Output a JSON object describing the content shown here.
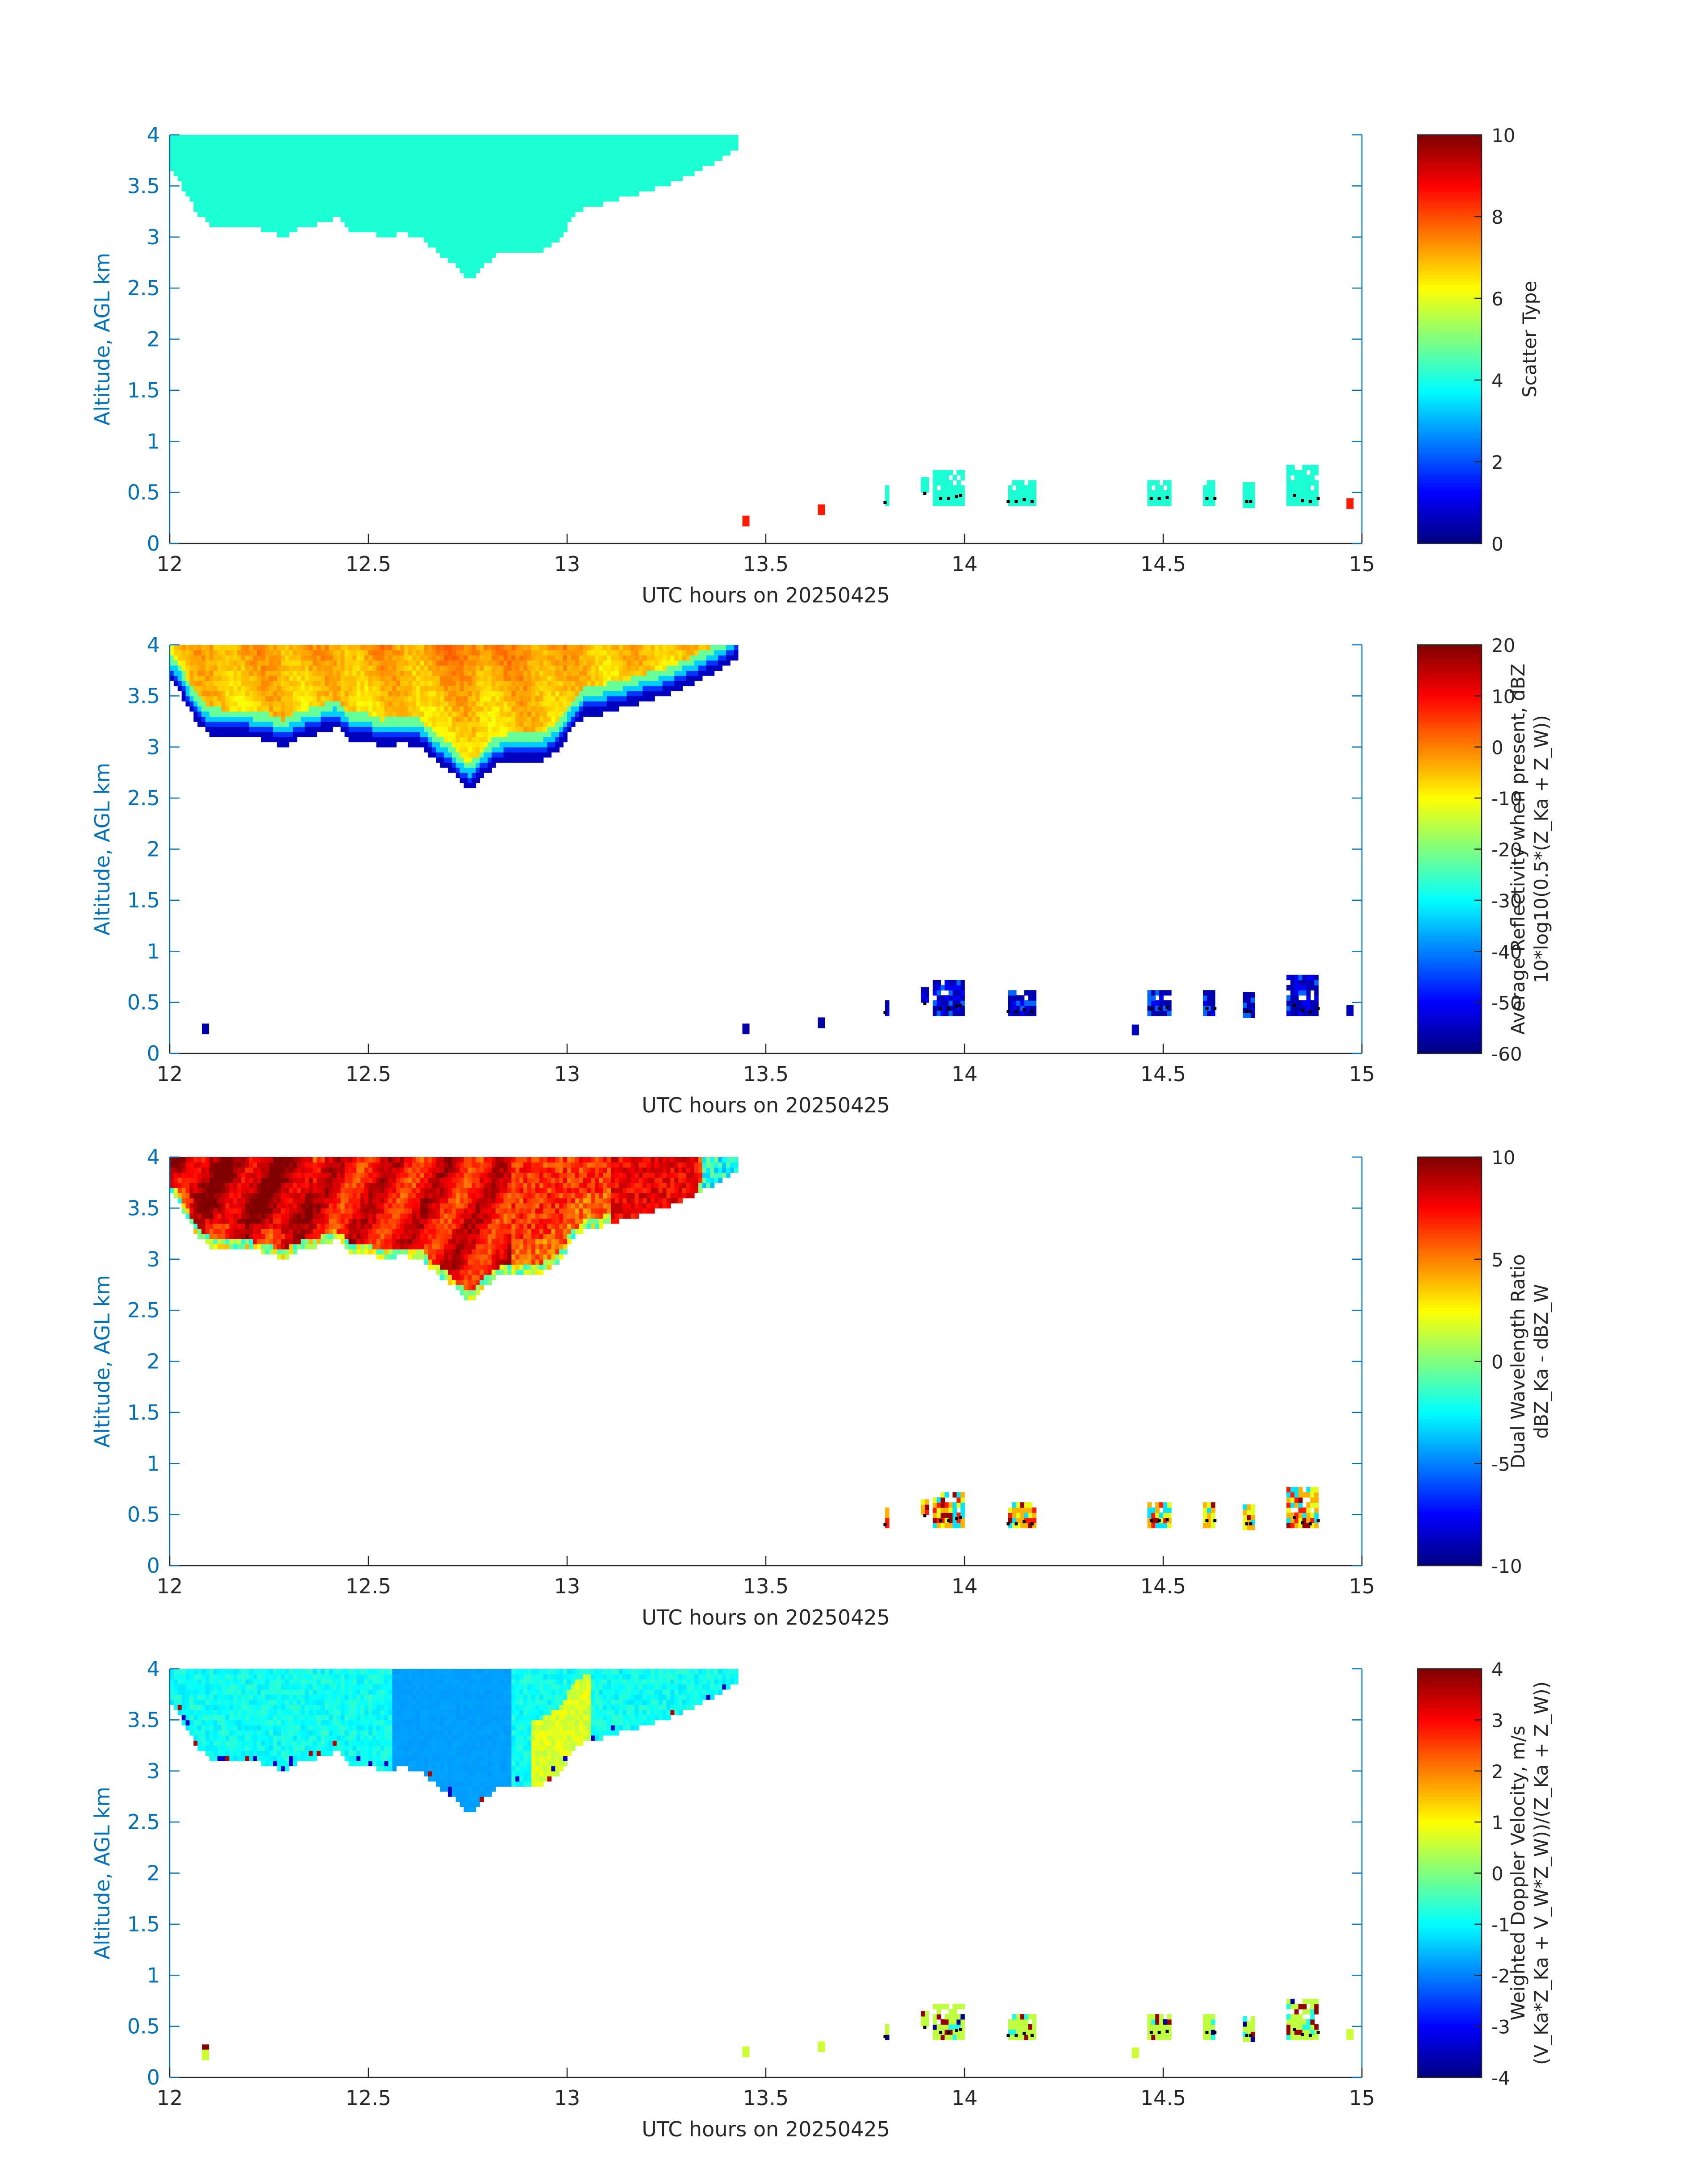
{
  "figure": {
    "time_axis_label": "UTC hours on 20250425",
    "altitude_axis_label": "Altitude, AGL km"
  },
  "colors": {
    "axis_blue": "#0072BD",
    "text_dark": "#262626",
    "cloud_cyan": "#1CFFD4",
    "surface_orange": "#FF4400"
  },
  "chart_data": [
    {
      "type": "heatmap",
      "id": "scatter_type",
      "title": "",
      "xlabel": "UTC hours on 20250425",
      "ylabel": "Altitude, AGL km",
      "xlim": [
        12,
        15
      ],
      "ylim": [
        0,
        4
      ],
      "x_ticks": [
        12,
        12.5,
        13,
        13.5,
        14,
        14.5,
        15
      ],
      "y_ticks": [
        0,
        0.5,
        1,
        1.5,
        2,
        2.5,
        3,
        3.5,
        4
      ],
      "colorbar": {
        "label": [
          "Scatter Type"
        ],
        "range": [
          0,
          10
        ],
        "ticks": [
          0,
          2,
          4,
          6,
          8,
          10
        ]
      },
      "field": "type",
      "surface_points": [
        {
          "x": 13.45,
          "y": 0.22,
          "v": 8.5
        },
        {
          "x": 13.64,
          "y": 0.33,
          "v": 8.5
        },
        {
          "x": 14.97,
          "y": 0.39,
          "v": 8.5
        }
      ]
    },
    {
      "type": "heatmap",
      "id": "avg_reflectivity",
      "title": "",
      "xlabel": "UTC hours on 20250425",
      "ylabel": "Altitude, AGL km",
      "xlim": [
        12,
        15
      ],
      "ylim": [
        0,
        4
      ],
      "x_ticks": [
        12,
        12.5,
        13,
        13.5,
        14,
        14.5,
        15
      ],
      "y_ticks": [
        0,
        0.5,
        1,
        1.5,
        2,
        2.5,
        3,
        3.5,
        4
      ],
      "colorbar": {
        "label": [
          "Average Reflectivity when present, dBZ",
          "10*log10(0.5*(Z_Ka + Z_W))"
        ],
        "range": [
          -60,
          20
        ],
        "ticks": [
          -60,
          -50,
          -40,
          -30,
          -20,
          -10,
          0,
          10,
          20
        ]
      },
      "field": "refl",
      "surface_points": [
        {
          "x": 12.09,
          "y": 0.24,
          "v": -57
        },
        {
          "x": 13.45,
          "y": 0.24,
          "v": -57
        },
        {
          "x": 13.64,
          "y": 0.3,
          "v": -57
        },
        {
          "x": 14.43,
          "y": 0.23,
          "v": -55
        },
        {
          "x": 14.97,
          "y": 0.42,
          "v": -55
        }
      ]
    },
    {
      "type": "heatmap",
      "id": "dual_wavelength_ratio",
      "title": "",
      "xlabel": "UTC hours on 20250425",
      "ylabel": "Altitude, AGL km",
      "xlim": [
        12,
        15
      ],
      "ylim": [
        0,
        4
      ],
      "x_ticks": [
        12,
        12.5,
        13,
        13.5,
        14,
        14.5,
        15
      ],
      "y_ticks": [
        0,
        0.5,
        1,
        1.5,
        2,
        2.5,
        3,
        3.5,
        4
      ],
      "colorbar": {
        "label": [
          "Dual Wavelength Ratio",
          "dBZ_Ka - dBZ_W"
        ],
        "range": [
          -10,
          10
        ],
        "ticks": [
          -10,
          -5,
          0,
          5,
          10
        ]
      },
      "field": "dwr",
      "surface_points": []
    },
    {
      "type": "heatmap",
      "id": "doppler_velocity",
      "title": "",
      "xlabel": "UTC hours on 20250425",
      "ylabel": "Altitude, AGL km",
      "xlim": [
        12,
        15
      ],
      "ylim": [
        0,
        4
      ],
      "x_ticks": [
        12,
        12.5,
        13,
        13.5,
        14,
        14.5,
        15
      ],
      "y_ticks": [
        0,
        0.5,
        1,
        1.5,
        2,
        2.5,
        3,
        3.5,
        4
      ],
      "colorbar": {
        "label": [
          "Weighted Doppler Velocity, m/s",
          "(V_Ka*Z_Ka + V_W*Z_W))/(Z_Ka + Z_W))"
        ],
        "range": [
          -4,
          4
        ],
        "ticks": [
          -4,
          -3,
          -2,
          -1,
          0,
          1,
          2,
          3,
          4
        ]
      },
      "field": "vel",
      "surface_points": [
        {
          "x": 12.09,
          "y": 0.27,
          "v": 4
        },
        {
          "x": 12.09,
          "y": 0.22,
          "v": 0.6
        },
        {
          "x": 13.45,
          "y": 0.25,
          "v": 0.6
        },
        {
          "x": 13.64,
          "y": 0.3,
          "v": 0.6
        },
        {
          "x": 14.43,
          "y": 0.24,
          "v": 0.6
        },
        {
          "x": 14.97,
          "y": 0.42,
          "v": 0.6
        }
      ]
    }
  ],
  "cloud_layer": {
    "x_start": 12.0,
    "x_end": 13.43,
    "top_km": 4.0,
    "base_profile": [
      [
        12.0,
        3.68
      ],
      [
        12.02,
        3.6
      ],
      [
        12.04,
        3.45
      ],
      [
        12.06,
        3.32
      ],
      [
        12.08,
        3.22
      ],
      [
        12.1,
        3.15
      ],
      [
        12.15,
        3.12
      ],
      [
        12.2,
        3.12
      ],
      [
        12.25,
        3.08
      ],
      [
        12.28,
        3.02
      ],
      [
        12.32,
        3.1
      ],
      [
        12.37,
        3.15
      ],
      [
        12.42,
        3.22
      ],
      [
        12.45,
        3.1
      ],
      [
        12.5,
        3.08
      ],
      [
        12.53,
        3.02
      ],
      [
        12.58,
        3.06
      ],
      [
        12.63,
        3.03
      ],
      [
        12.65,
        2.95
      ],
      [
        12.68,
        2.85
      ],
      [
        12.71,
        2.78
      ],
      [
        12.73,
        2.68
      ],
      [
        12.75,
        2.6
      ],
      [
        12.77,
        2.65
      ],
      [
        12.79,
        2.75
      ],
      [
        12.82,
        2.85
      ],
      [
        12.86,
        2.89
      ],
      [
        12.93,
        2.89
      ],
      [
        12.96,
        2.95
      ],
      [
        12.99,
        3.05
      ],
      [
        13.01,
        3.2
      ],
      [
        13.05,
        3.35
      ],
      [
        13.08,
        3.33
      ],
      [
        13.1,
        3.38
      ],
      [
        13.15,
        3.42
      ],
      [
        13.2,
        3.48
      ],
      [
        13.25,
        3.53
      ],
      [
        13.3,
        3.62
      ],
      [
        13.35,
        3.72
      ],
      [
        13.4,
        3.82
      ],
      [
        13.43,
        3.9
      ]
    ]
  },
  "low_cells": [
    {
      "x0": 13.8,
      "x1": 13.81,
      "y0": 0.37,
      "y1": 0.55
    },
    {
      "x0": 13.89,
      "x1": 13.91,
      "y0": 0.5,
      "y1": 0.65
    },
    {
      "x0": 13.92,
      "x1": 14.0,
      "y0": 0.37,
      "y1": 0.68
    },
    {
      "x0": 14.11,
      "x1": 14.18,
      "y0": 0.37,
      "y1": 0.62
    },
    {
      "x0": 14.46,
      "x1": 14.52,
      "y0": 0.37,
      "y1": 0.58
    },
    {
      "x0": 14.6,
      "x1": 14.63,
      "y0": 0.37,
      "y1": 0.62
    },
    {
      "x0": 14.7,
      "x1": 14.73,
      "y0": 0.35,
      "y1": 0.57
    },
    {
      "x0": 14.81,
      "x1": 14.89,
      "y0": 0.37,
      "y1": 0.76
    }
  ],
  "black_dots": [
    [
      13.8,
      0.4
    ],
    [
      13.9,
      0.49
    ],
    [
      13.94,
      0.44
    ],
    [
      13.96,
      0.44
    ],
    [
      13.98,
      0.46
    ],
    [
      13.99,
      0.47
    ],
    [
      14.11,
      0.41
    ],
    [
      14.13,
      0.41
    ],
    [
      14.15,
      0.43
    ],
    [
      14.17,
      0.41
    ],
    [
      14.47,
      0.44
    ],
    [
      14.49,
      0.44
    ],
    [
      14.51,
      0.45
    ],
    [
      14.61,
      0.44
    ],
    [
      14.63,
      0.44
    ],
    [
      14.71,
      0.41
    ],
    [
      14.72,
      0.41
    ],
    [
      14.83,
      0.47
    ],
    [
      14.85,
      0.42
    ],
    [
      14.87,
      0.41
    ],
    [
      14.89,
      0.44
    ]
  ]
}
